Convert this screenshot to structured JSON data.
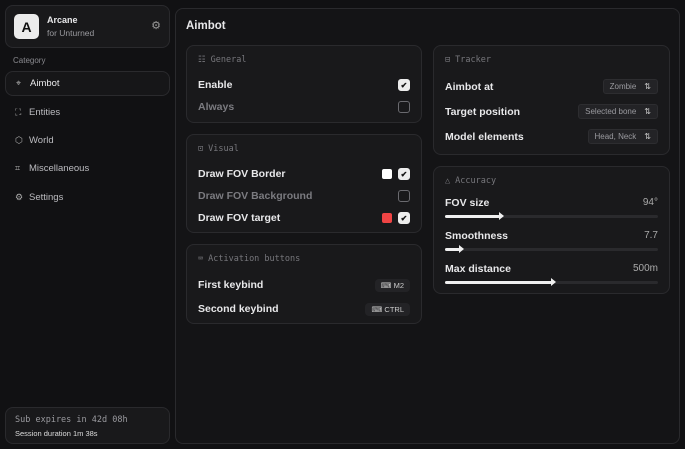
{
  "brand": {
    "logo": "A",
    "name": "Arcane",
    "subtitle": "for Unturned",
    "icon": "gear-icon"
  },
  "sidebar": {
    "category_label": "Category",
    "items": [
      {
        "label": "Aimbot",
        "icon": "crosshair-icon",
        "active": true
      },
      {
        "label": "Entities",
        "icon": "entities-icon"
      },
      {
        "label": "World",
        "icon": "world-icon"
      },
      {
        "label": "Miscellaneous",
        "icon": "misc-icon"
      },
      {
        "label": "Settings",
        "icon": "settings-icon"
      }
    ]
  },
  "subscription": {
    "expires": "Sub expires in 42d 08h",
    "session": "Session duration 1m 38s"
  },
  "page": {
    "title": "Aimbot"
  },
  "general": {
    "title": "General",
    "rows": [
      {
        "label": "Enable",
        "checked": true
      },
      {
        "label": "Always",
        "checked": false
      }
    ]
  },
  "visual": {
    "title": "Visual",
    "rows": [
      {
        "label": "Draw FOV Border",
        "checked": true,
        "color": "#ffffff"
      },
      {
        "label": "Draw FOV Background",
        "checked": false
      },
      {
        "label": "Draw FOV target",
        "checked": true,
        "color": "#ef4444"
      }
    ]
  },
  "activation": {
    "title": "Activation buttons",
    "rows": [
      {
        "label": "First keybind",
        "key": "M2"
      },
      {
        "label": "Second keybind",
        "key": "CTRL"
      }
    ]
  },
  "tracker": {
    "title": "Tracker",
    "rows": [
      {
        "label": "Aimbot at",
        "value": "Zombie"
      },
      {
        "label": "Target position",
        "value": "Selected bone"
      },
      {
        "label": "Model elements",
        "value": "Head, Neck"
      }
    ]
  },
  "accuracy": {
    "title": "Accuracy",
    "sliders": [
      {
        "label": "FOV size",
        "value": "94°",
        "fraction": 0.26
      },
      {
        "label": "Smoothness",
        "value": "7.7",
        "fraction": 0.07
      },
      {
        "label": "Max distance",
        "value": "500m",
        "fraction": 0.5
      }
    ]
  }
}
